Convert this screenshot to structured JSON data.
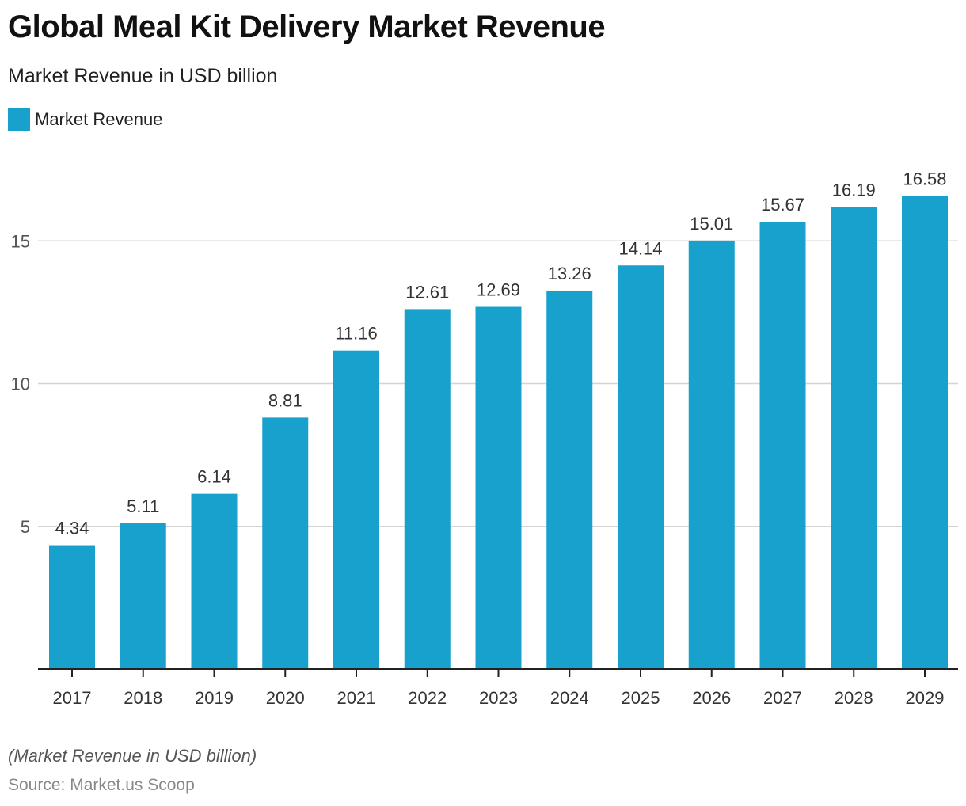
{
  "chart_data": {
    "type": "bar",
    "title": "Global Meal Kit Delivery Market Revenue",
    "subtitle": "Market Revenue in USD billion",
    "legend": "top-left",
    "series": [
      {
        "name": "Market Revenue",
        "color": "#18a1cd",
        "values": [
          4.34,
          5.11,
          6.14,
          8.81,
          11.16,
          12.61,
          12.69,
          13.26,
          14.14,
          15.01,
          15.67,
          16.19,
          16.58
        ]
      }
    ],
    "categories": [
      "2017",
      "2018",
      "2019",
      "2020",
      "2021",
      "2022",
      "2023",
      "2024",
      "2025",
      "2026",
      "2027",
      "2028",
      "2029"
    ],
    "yticks": [
      5,
      10,
      15
    ],
    "ylim": [
      0,
      18.5
    ],
    "grid": true,
    "note": "(Market Revenue in USD billion)",
    "source": "Source: Market.us Scoop"
  }
}
